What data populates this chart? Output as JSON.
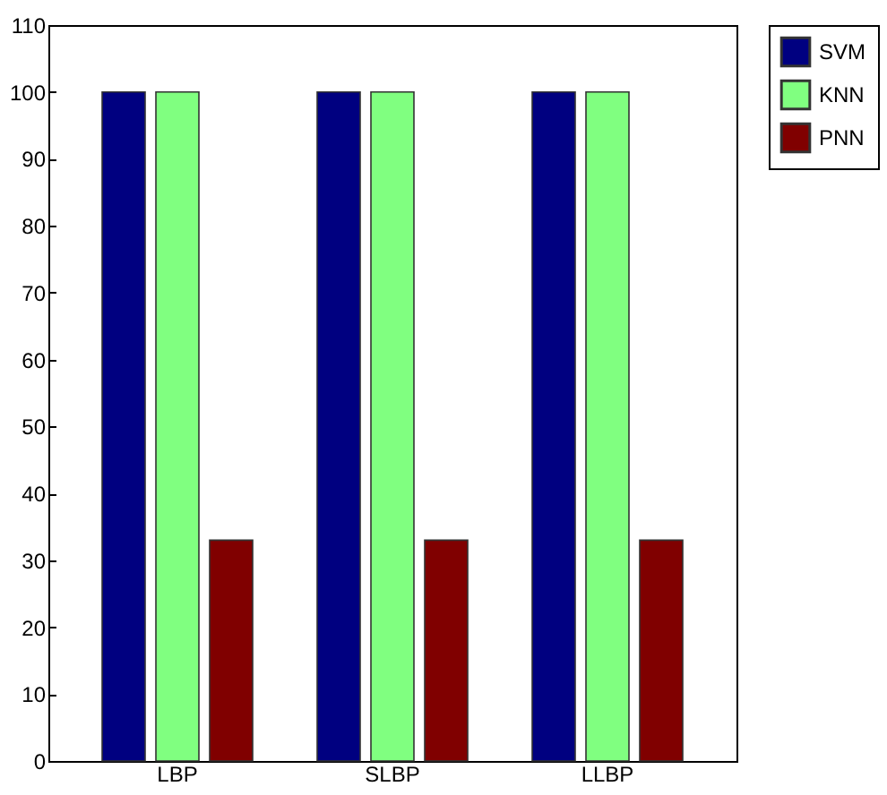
{
  "chart_data": {
    "type": "bar",
    "categories": [
      "LBP",
      "SLBP",
      "LLBP"
    ],
    "series": [
      {
        "name": "SVM",
        "color": "#000080",
        "values": [
          100,
          100,
          100
        ]
      },
      {
        "name": "KNN",
        "color": "#80ff80",
        "values": [
          100,
          100,
          100
        ]
      },
      {
        "name": "PNN",
        "color": "#800000",
        "values": [
          33,
          33,
          33
        ]
      }
    ],
    "ylim": [
      0,
      110
    ],
    "yticks": [
      0,
      10,
      20,
      30,
      40,
      50,
      60,
      70,
      80,
      90,
      100,
      110
    ],
    "grid": false,
    "legend": "top right"
  }
}
